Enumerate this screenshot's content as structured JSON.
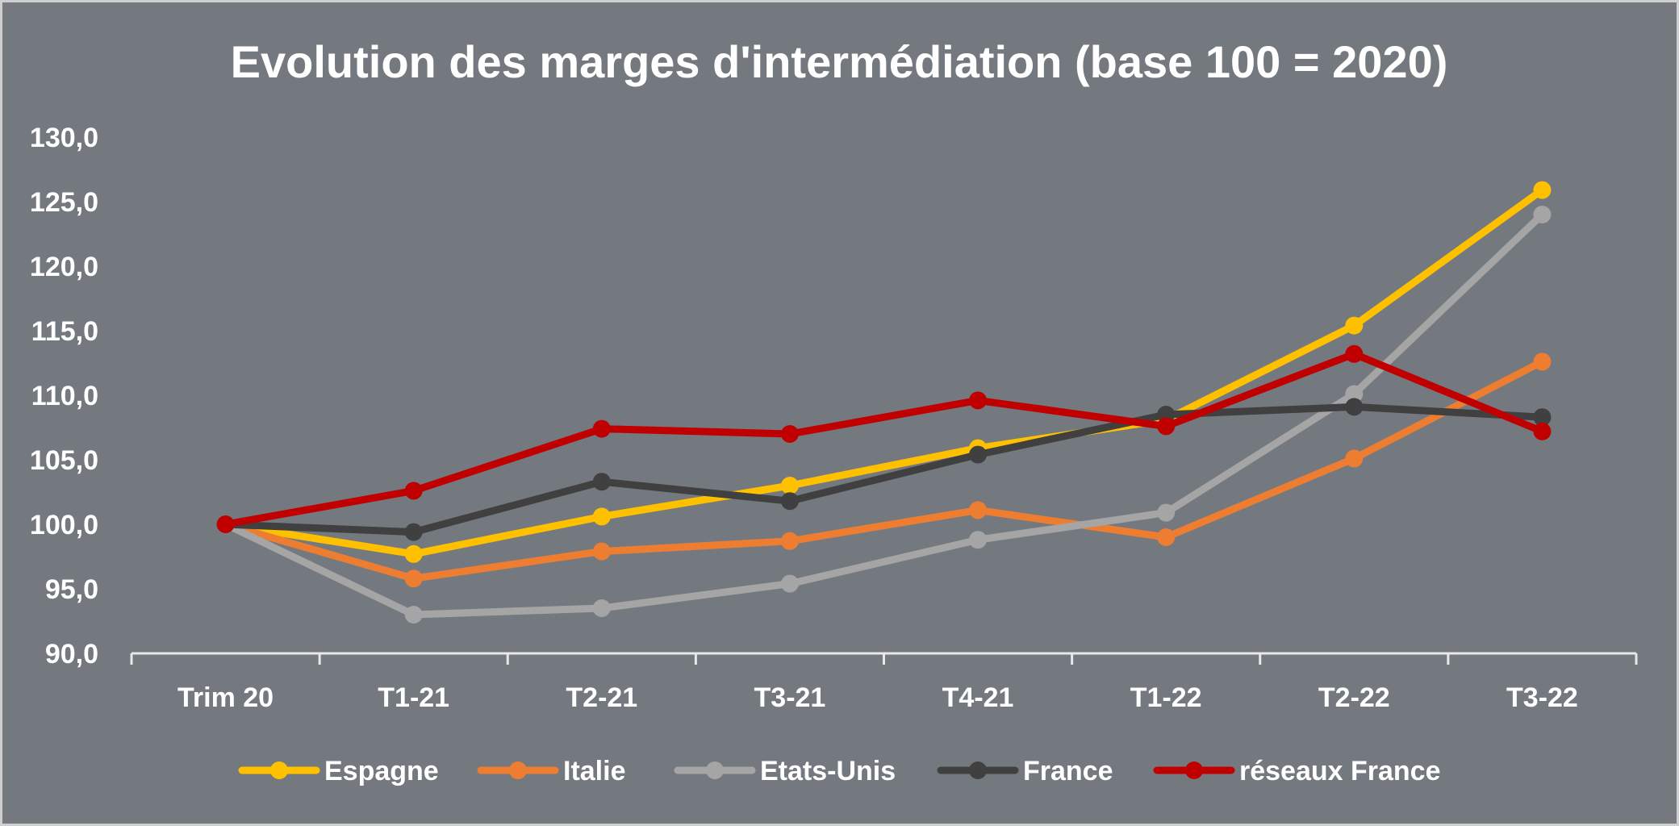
{
  "chart_data": {
    "type": "line",
    "title": "Evolution des marges d'intermédiation (base 100 = 2020)",
    "xlabel": "",
    "ylabel": "",
    "categories": [
      "Trim 20",
      "T1-21",
      "T2-21",
      "T3-21",
      "T4-21",
      "T1-22",
      "T2-22",
      "T3-22"
    ],
    "ylim": [
      90,
      130
    ],
    "yticks": [
      90,
      95,
      100,
      105,
      110,
      115,
      120,
      125,
      130
    ],
    "ytick_labels": [
      "90,0",
      "95,0",
      "100,0",
      "105,0",
      "110,0",
      "115,0",
      "120,0",
      "125,0",
      "130,0"
    ],
    "grid": false,
    "legend_position": "bottom",
    "series": [
      {
        "name": "Espagne",
        "color": "#FFC000",
        "values": [
          100.0,
          97.7,
          100.6,
          103.0,
          105.9,
          108.1,
          115.4,
          125.9
        ]
      },
      {
        "name": "Italie",
        "color": "#ED7D31",
        "values": [
          100.0,
          95.8,
          97.9,
          98.7,
          101.1,
          99.0,
          105.1,
          112.6
        ]
      },
      {
        "name": "Etats-Unis",
        "color": "#A5A5A5",
        "values": [
          100.0,
          93.0,
          93.5,
          95.4,
          98.8,
          100.9,
          110.1,
          124.0
        ]
      },
      {
        "name": "France",
        "color": "#404040",
        "values": [
          100.0,
          99.4,
          103.3,
          101.8,
          105.4,
          108.5,
          109.1,
          108.3
        ]
      },
      {
        "name": "réseaux France",
        "color": "#C00000",
        "values": [
          100.0,
          102.6,
          107.4,
          107.0,
          109.6,
          107.6,
          113.2,
          107.2
        ]
      }
    ]
  }
}
